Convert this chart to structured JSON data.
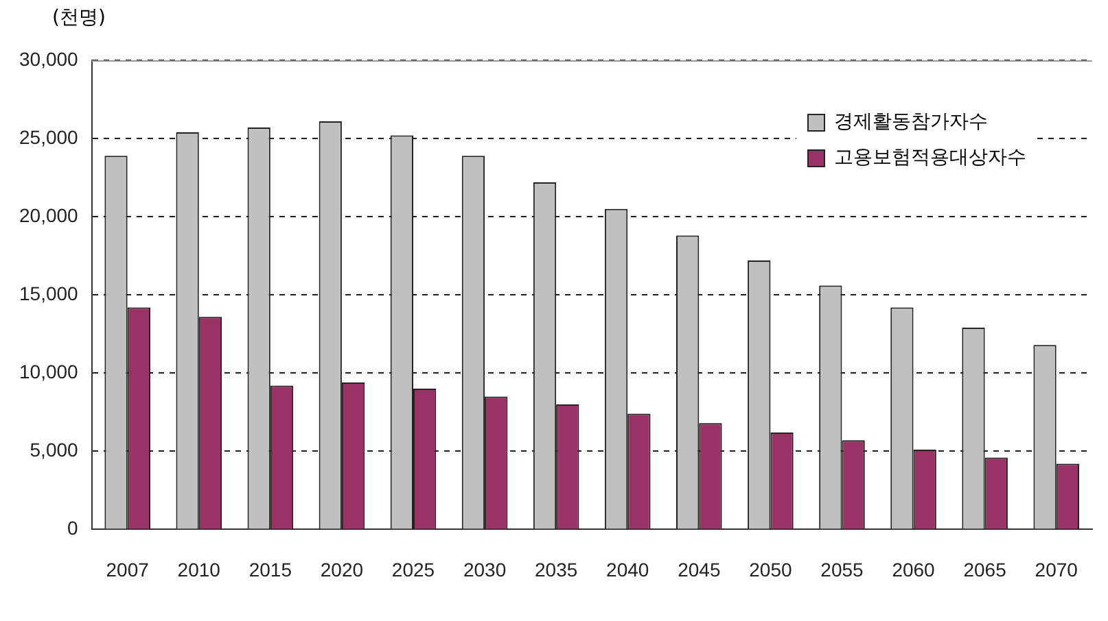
{
  "chart_data": {
    "type": "bar",
    "ylabel": "(천명)",
    "categories": [
      "2007",
      "2010",
      "2015",
      "2020",
      "2025",
      "2030",
      "2035",
      "2040",
      "2045",
      "2050",
      "2055",
      "2060",
      "2065",
      "2070"
    ],
    "series": [
      {
        "name": "경제활동참가자수",
        "color": "#c0c0c0",
        "values": [
          23900,
          25400,
          25700,
          26100,
          25200,
          23900,
          22200,
          20500,
          18800,
          17200,
          15600,
          14200,
          12900,
          11800
        ]
      },
      {
        "name": "고용보험적용대상자수",
        "color": "#993366",
        "values": [
          14200,
          13600,
          9200,
          9400,
          9000,
          8500,
          8000,
          7400,
          6800,
          6200,
          5700,
          5100,
          4600,
          4200
        ]
      }
    ],
    "ylim": [
      0,
      30000
    ],
    "yticks": [
      0,
      {
        "value": 5000,
        "label": "5,000"
      },
      {
        "value": 10000,
        "label": "10,000"
      },
      {
        "value": 15000,
        "label": "15,000"
      },
      {
        "value": 20000,
        "label": "20,000"
      },
      {
        "value": 25000,
        "label": "25,000"
      },
      {
        "value": 30000,
        "label": "30,000"
      }
    ],
    "grid": "y",
    "legend": "top right"
  }
}
